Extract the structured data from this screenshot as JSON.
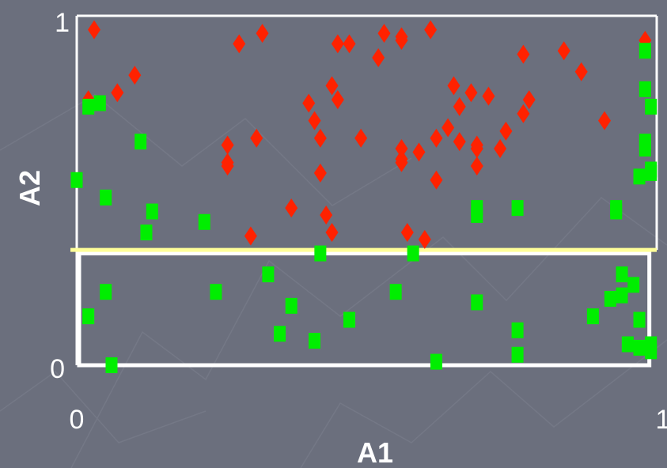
{
  "chart_data": {
    "type": "scatter",
    "xlabel": "A1",
    "ylabel": "A2",
    "xlim": [
      0,
      1
    ],
    "ylim": [
      0,
      1
    ],
    "x_ticks": [
      "0",
      "1"
    ],
    "y_ticks": [
      "0",
      "1"
    ],
    "grid": false,
    "threshold": {
      "axis": "y",
      "value": 0.33,
      "color": "#ffff99"
    },
    "region": {
      "x": [
        0,
        0.99
      ],
      "y": [
        0,
        0.32
      ],
      "color": "#ffffff"
    },
    "series": [
      {
        "marker": "diamond",
        "color": "#ff2200",
        "points": [
          [
            0.03,
            0.96
          ],
          [
            0.02,
            0.76
          ],
          [
            0.07,
            0.78
          ],
          [
            0.1,
            0.83
          ],
          [
            0.28,
            0.92
          ],
          [
            0.32,
            0.95
          ],
          [
            0.26,
            0.63
          ],
          [
            0.26,
            0.58
          ],
          [
            0.26,
            0.57
          ],
          [
            0.31,
            0.65
          ],
          [
            0.3,
            0.37
          ],
          [
            0.37,
            0.45
          ],
          [
            0.4,
            0.75
          ],
          [
            0.41,
            0.7
          ],
          [
            0.42,
            0.65
          ],
          [
            0.42,
            0.55
          ],
          [
            0.43,
            0.43
          ],
          [
            0.44,
            0.38
          ],
          [
            0.44,
            0.8
          ],
          [
            0.45,
            0.76
          ],
          [
            0.45,
            0.92
          ],
          [
            0.47,
            0.92
          ],
          [
            0.49,
            0.65
          ],
          [
            0.52,
            0.88
          ],
          [
            0.53,
            0.95
          ],
          [
            0.56,
            0.93
          ],
          [
            0.56,
            0.59
          ],
          [
            0.56,
            0.58
          ],
          [
            0.56,
            0.94
          ],
          [
            0.57,
            0.38
          ],
          [
            0.56,
            0.62
          ],
          [
            0.59,
            0.61
          ],
          [
            0.6,
            0.36
          ],
          [
            0.61,
            0.96
          ],
          [
            0.62,
            0.65
          ],
          [
            0.62,
            0.53
          ],
          [
            0.64,
            0.68
          ],
          [
            0.65,
            0.8
          ],
          [
            0.66,
            0.74
          ],
          [
            0.68,
            0.78
          ],
          [
            0.66,
            0.64
          ],
          [
            0.69,
            0.62
          ],
          [
            0.69,
            0.63
          ],
          [
            0.69,
            0.57
          ],
          [
            0.71,
            0.77
          ],
          [
            0.73,
            0.62
          ],
          [
            0.74,
            0.67
          ],
          [
            0.77,
            0.89
          ],
          [
            0.78,
            0.76
          ],
          [
            0.77,
            0.72
          ],
          [
            0.84,
            0.9
          ],
          [
            0.87,
            0.84
          ],
          [
            0.91,
            0.7
          ],
          [
            0.98,
            0.93
          ]
        ]
      },
      {
        "marker": "square",
        "color": "#00ee00",
        "points": [
          [
            0.0,
            0.53
          ],
          [
            0.02,
            0.74
          ],
          [
            0.04,
            0.75
          ],
          [
            0.05,
            0.48
          ],
          [
            0.11,
            0.64
          ],
          [
            0.12,
            0.38
          ],
          [
            0.13,
            0.44
          ],
          [
            0.22,
            0.41
          ],
          [
            0.02,
            0.14
          ],
          [
            0.05,
            0.21
          ],
          [
            0.06,
            0.0
          ],
          [
            0.24,
            0.21
          ],
          [
            0.33,
            0.26
          ],
          [
            0.37,
            0.17
          ],
          [
            0.35,
            0.09
          ],
          [
            0.41,
            0.07
          ],
          [
            0.42,
            0.32
          ],
          [
            0.47,
            0.13
          ],
          [
            0.55,
            0.21
          ],
          [
            0.58,
            0.32
          ],
          [
            0.62,
            0.01
          ],
          [
            0.69,
            0.18
          ],
          [
            0.69,
            0.43
          ],
          [
            0.69,
            0.45
          ],
          [
            0.76,
            0.03
          ],
          [
            0.76,
            0.1
          ],
          [
            0.76,
            0.45
          ],
          [
            0.89,
            0.14
          ],
          [
            0.92,
            0.19
          ],
          [
            0.93,
            0.45
          ],
          [
            0.93,
            0.44
          ],
          [
            0.94,
            0.26
          ],
          [
            0.94,
            0.2
          ],
          [
            0.95,
            0.06
          ],
          [
            0.96,
            0.23
          ],
          [
            0.97,
            0.13
          ],
          [
            0.97,
            0.05
          ],
          [
            0.97,
            0.54
          ],
          [
            0.98,
            0.62
          ],
          [
            0.99,
            0.56
          ],
          [
            0.99,
            0.55
          ],
          [
            0.99,
            0.06
          ],
          [
            0.99,
            0.04
          ],
          [
            0.98,
            0.64
          ],
          [
            0.98,
            0.79
          ],
          [
            0.98,
            0.9
          ],
          [
            0.99,
            0.74
          ]
        ]
      }
    ]
  }
}
